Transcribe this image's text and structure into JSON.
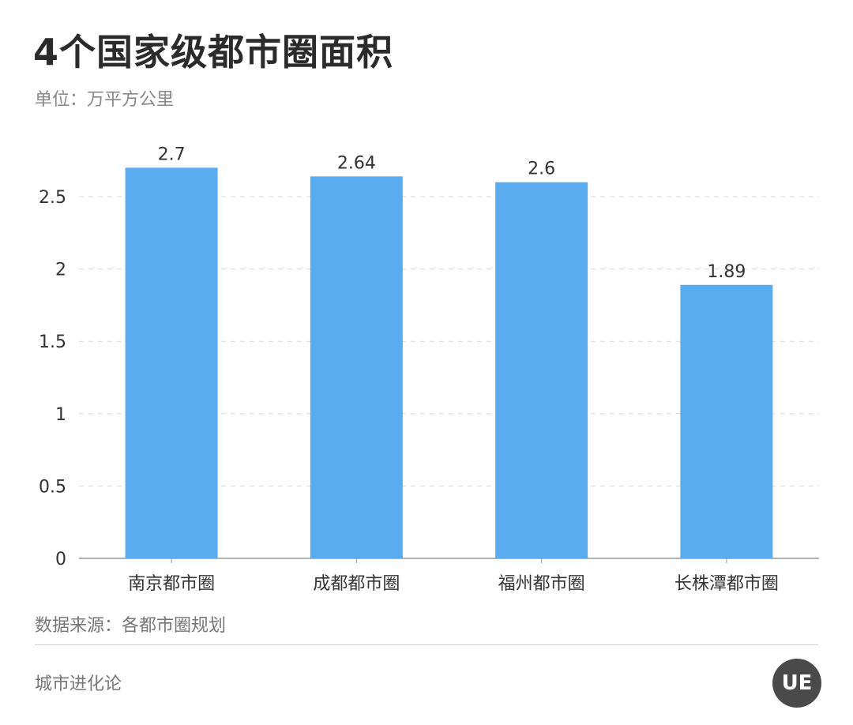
{
  "header": {
    "title": "4个国家级都市圈面积",
    "unit": "单位：万平方公里"
  },
  "footer": {
    "source": "数据来源：各都市圈规划",
    "brand": "城市进化论",
    "logo_text": "UE"
  },
  "colors": {
    "bar": "#5aacf0",
    "grid": "#d9d9d9",
    "axis": "#999999",
    "text": "#333333"
  },
  "chart_data": {
    "type": "bar",
    "categories": [
      "南京都市圈",
      "成都都市圈",
      "福州都市圈",
      "长株潭都市圈"
    ],
    "values": [
      2.7,
      2.64,
      2.6,
      1.89
    ],
    "data_labels": [
      "2.7",
      "2.64",
      "2.6",
      "1.89"
    ],
    "title": "4个国家级都市圈面积",
    "ylabel": "单位：万平方公里",
    "xlabel": "",
    "ylim": [
      0,
      2.75
    ],
    "yticks": [
      0,
      0.5,
      1,
      1.5,
      2,
      2.5
    ],
    "ytick_labels": [
      "0",
      "0.5",
      "1",
      "1.5",
      "2",
      "2.5"
    ],
    "grid": true,
    "legend": "none"
  }
}
